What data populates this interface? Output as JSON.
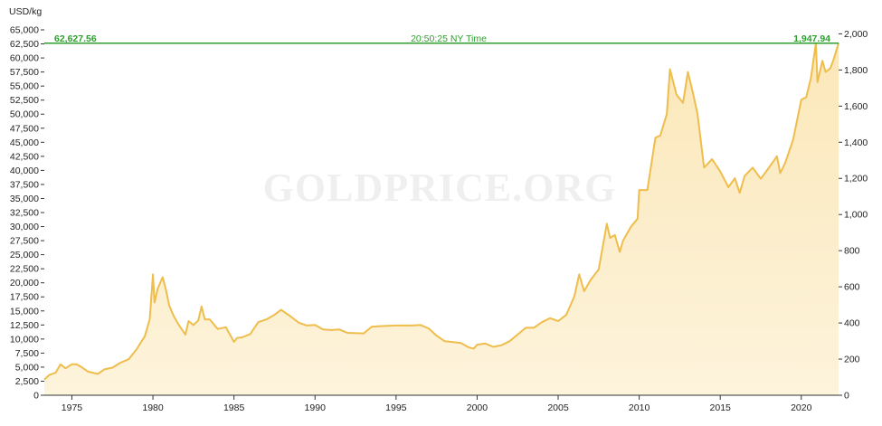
{
  "watermark": "GOLDPRICE.ORG",
  "chart_data": {
    "type": "area",
    "y_unit_label": "USD/kg",
    "current_left_value": "62,627.56",
    "current_right_value": "1,947.94",
    "current_time": "20:50:25 NY Time",
    "current_line_value": 62627.56,
    "ylim_left": [
      0,
      65000
    ],
    "ylim_right": [
      0,
      2022
    ],
    "xlim": [
      1973.3,
      2022.3
    ],
    "yticks_left": [
      0,
      2500,
      5000,
      7500,
      10000,
      12500,
      15000,
      17500,
      20000,
      22500,
      25000,
      27500,
      30000,
      32500,
      35000,
      37500,
      40000,
      42500,
      45000,
      47500,
      50000,
      52500,
      55000,
      57500,
      60000,
      62500,
      65000
    ],
    "yticks_left_labels": [
      "0",
      "2,500",
      "5,000",
      "7,500",
      "10,000",
      "12,500",
      "15,000",
      "17,500",
      "20,000",
      "22,500",
      "25,000",
      "27,500",
      "30,000",
      "32,500",
      "35,000",
      "37,500",
      "40,000",
      "42,500",
      "45,000",
      "47,500",
      "50,000",
      "52,500",
      "55,000",
      "57,500",
      "60,000",
      "62,500",
      "65,000"
    ],
    "yticks_right": [
      0,
      200,
      400,
      600,
      800,
      1000,
      1200,
      1400,
      1600,
      1800,
      2000
    ],
    "yticks_right_labels": [
      "0",
      "200",
      "400",
      "600",
      "800",
      "1,000",
      "1,200",
      "1,400",
      "1,600",
      "1,800",
      "2,000"
    ],
    "xticks": [
      1975,
      1980,
      1985,
      1990,
      1995,
      2000,
      2005,
      2010,
      2015,
      2020
    ],
    "xticks_labels": [
      "1975",
      "1980",
      "1985",
      "1990",
      "1995",
      "2000",
      "2005",
      "2010",
      "2015",
      "2020"
    ],
    "series": [
      {
        "x": [
          1973.3,
          1973.6,
          1974.0,
          1974.3,
          1974.6,
          1975.0,
          1975.3,
          1975.6,
          1976.0,
          1976.3,
          1976.6,
          1977.0,
          1977.5,
          1978.0,
          1978.5,
          1979.0,
          1979.5,
          1979.8,
          1980.0,
          1980.1,
          1980.3,
          1980.6,
          1980.8,
          1981.0,
          1981.3,
          1981.6,
          1982.0,
          1982.2,
          1982.5,
          1982.8,
          1983.0,
          1983.2,
          1983.5,
          1984.0,
          1984.5,
          1985.0,
          1985.2,
          1985.5,
          1986.0,
          1986.5,
          1987.0,
          1987.5,
          1987.9,
          1988.5,
          1989.0,
          1989.5,
          1990.0,
          1990.5,
          1991.0,
          1991.5,
          1992.0,
          1993.0,
          1993.5,
          1994.0,
          1995.0,
          1996.0,
          1996.5,
          1997.0,
          1997.5,
          1998.0,
          1999.0,
          1999.5,
          1999.8,
          2000.0,
          2000.5,
          2001.0,
          2001.5,
          2002.0,
          2002.5,
          2003.0,
          2003.5,
          2004.0,
          2004.5,
          2005.0,
          2005.5,
          2006.0,
          2006.3,
          2006.6,
          2007.0,
          2007.5,
          2008.0,
          2008.2,
          2008.5,
          2008.8,
          2009.0,
          2009.5,
          2009.9,
          2010.0,
          2010.5,
          2011.0,
          2011.3,
          2011.7,
          2011.9,
          2012.3,
          2012.7,
          2013.0,
          2013.3,
          2013.6,
          2014.0,
          2014.5,
          2015.0,
          2015.5,
          2015.9,
          2016.2,
          2016.5,
          2017.0,
          2017.5,
          2018.0,
          2018.5,
          2018.7,
          2019.0,
          2019.5,
          2020.0,
          2020.3,
          2020.6,
          2020.9,
          2021.0,
          2021.3,
          2021.5,
          2021.8,
          2022.0,
          2022.3
        ],
        "y": [
          2800,
          3600,
          4000,
          5500,
          4800,
          5500,
          5500,
          5000,
          4200,
          4000,
          3800,
          4600,
          4900,
          5800,
          6400,
          8200,
          10500,
          13500,
          21500,
          16500,
          19000,
          21000,
          18800,
          16000,
          14000,
          12500,
          10800,
          13200,
          12500,
          13300,
          15800,
          13500,
          13500,
          11800,
          12100,
          9500,
          10200,
          10300,
          10900,
          13000,
          13500,
          14300,
          15200,
          14000,
          12900,
          12400,
          12500,
          11700,
          11600,
          11700,
          11100,
          11000,
          12200,
          12300,
          12400,
          12400,
          12500,
          11900,
          10600,
          9600,
          9300,
          8500,
          8300,
          9000,
          9200,
          8600,
          8900,
          9600,
          10800,
          12000,
          12000,
          13000,
          13700,
          13200,
          14300,
          17600,
          21500,
          18500,
          20500,
          22400,
          30500,
          28000,
          28500,
          25500,
          27500,
          30000,
          31400,
          36500,
          36500,
          45800,
          46200,
          50000,
          58000,
          53500,
          52000,
          57500,
          54000,
          50000,
          40500,
          42000,
          39800,
          37000,
          38600,
          36000,
          39000,
          40500,
          38500,
          40500,
          42500,
          39500,
          41300,
          45500,
          52600,
          53000,
          56500,
          62627,
          55700,
          59500,
          57500,
          58200,
          59800,
          62627
        ]
      }
    ]
  }
}
